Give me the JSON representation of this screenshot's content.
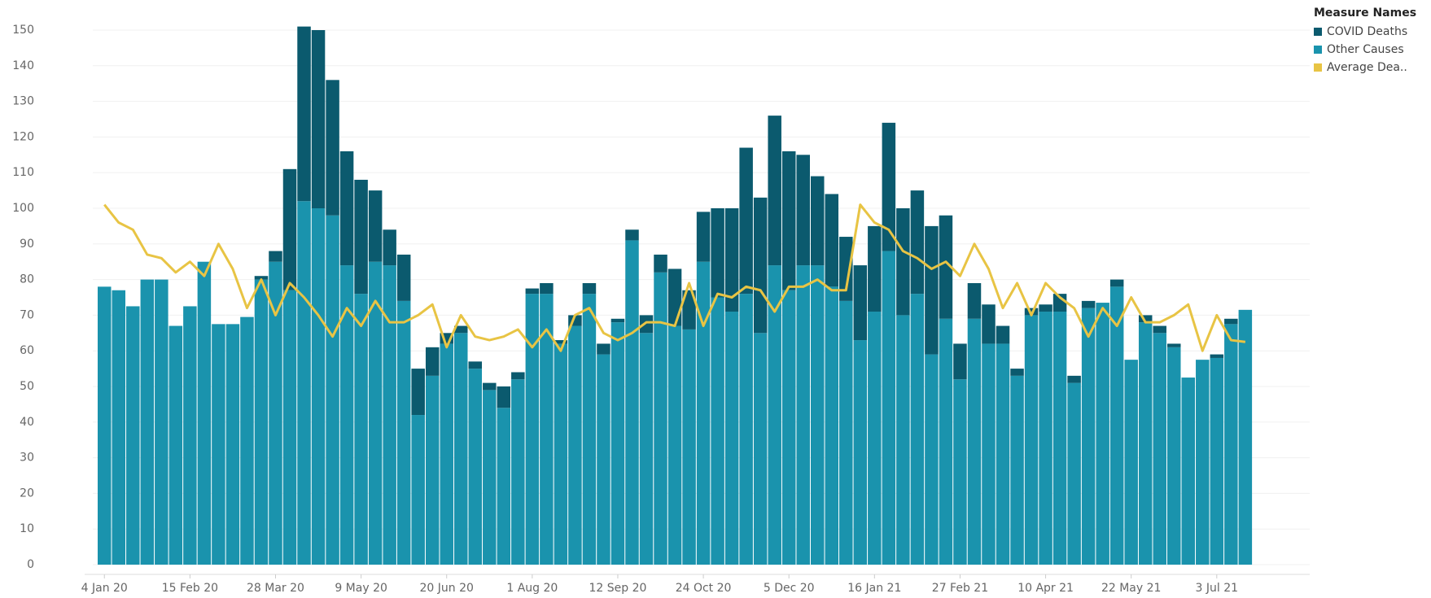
{
  "chart_data": {
    "type": "bar",
    "stacked": true,
    "grid": true,
    "legend_title": "Measure Names",
    "legend_position": "right",
    "categories": [
      "4 Jan 20",
      null,
      null,
      null,
      null,
      null,
      "15 Feb 20",
      null,
      null,
      null,
      null,
      null,
      "28 Mar 20",
      null,
      null,
      null,
      null,
      null,
      "9 May 20",
      null,
      null,
      null,
      null,
      null,
      "20 Jun 20",
      null,
      null,
      null,
      null,
      null,
      "1 Aug 20",
      null,
      null,
      null,
      null,
      null,
      "12 Sep 20",
      null,
      null,
      null,
      null,
      null,
      "24 Oct 20",
      null,
      null,
      null,
      null,
      null,
      "5 Dec 20",
      null,
      null,
      null,
      null,
      null,
      "16 Jan 21",
      null,
      null,
      null,
      null,
      null,
      "27 Feb 21",
      null,
      null,
      null,
      null,
      null,
      "10 Apr 21",
      null,
      null,
      null,
      null,
      null,
      "22 May 21",
      null,
      null,
      null,
      null,
      null,
      "3 Jul 21",
      null,
      null
    ],
    "series": [
      {
        "name": "Other Causes",
        "type": "bar",
        "color": "#1a93ad",
        "values": [
          78,
          77,
          72.5,
          80,
          80,
          67,
          72.5,
          85,
          67.5,
          67.5,
          69.5,
          80,
          85,
          77,
          102,
          100,
          98,
          84,
          76,
          85,
          84,
          74,
          42,
          53,
          62,
          65,
          55,
          49,
          44,
          52,
          76,
          76,
          62,
          67,
          76,
          59,
          68,
          91,
          65,
          82,
          67,
          66,
          85,
          75,
          71,
          76,
          65,
          84,
          77,
          84,
          84,
          78,
          74,
          63,
          71,
          88,
          70,
          76,
          59,
          69,
          52,
          69,
          62,
          62,
          53,
          70,
          71,
          71,
          51,
          72,
          73.5,
          78,
          57.5,
          68,
          65,
          61,
          52.5,
          57.5,
          58,
          67.5,
          71.5
        ]
      },
      {
        "name": "COVID Deaths",
        "type": "bar",
        "color": "#0b5a6e",
        "values": [
          0,
          0,
          0,
          0,
          0,
          0,
          0,
          0,
          0,
          0,
          0,
          1,
          3,
          34,
          49,
          50,
          38,
          32,
          32,
          20,
          10,
          13,
          13,
          8,
          3,
          2,
          2,
          2,
          6,
          2,
          1.5,
          3,
          1,
          3,
          3,
          3,
          1,
          3,
          5,
          5,
          16,
          11,
          14,
          25,
          29,
          41,
          38,
          42,
          39,
          31,
          25,
          26,
          18,
          21,
          24,
          36,
          30,
          29,
          36,
          29,
          10,
          10,
          11,
          5,
          2,
          2,
          2,
          5,
          2,
          2,
          0,
          2,
          0,
          2,
          2,
          1,
          0,
          0,
          1,
          1.5,
          0
        ]
      },
      {
        "name": "Average Dea..",
        "type": "line",
        "color": "#e8c444",
        "values": [
          101,
          96,
          94,
          87,
          86,
          82,
          85,
          81,
          90,
          83,
          72,
          80,
          70,
          79,
          75,
          70,
          64,
          72,
          67,
          74,
          68,
          68,
          70,
          73,
          61,
          70,
          64,
          63,
          64,
          66,
          61,
          66,
          60,
          70,
          72,
          65,
          63,
          65,
          68,
          68,
          67,
          79,
          67,
          76,
          75,
          78,
          77,
          71,
          78,
          78,
          80,
          77,
          77,
          101,
          96,
          94,
          88,
          86,
          83,
          85,
          81,
          90,
          83,
          72,
          79,
          70,
          79,
          75,
          72,
          64,
          72,
          67,
          75,
          68,
          68,
          70,
          73,
          60,
          70,
          63,
          62.5
        ]
      }
    ],
    "ylim": [
      0,
      150
    ],
    "yticks": [
      0,
      10,
      20,
      30,
      40,
      50,
      60,
      70,
      80,
      90,
      100,
      110,
      120,
      130,
      140,
      150
    ]
  }
}
